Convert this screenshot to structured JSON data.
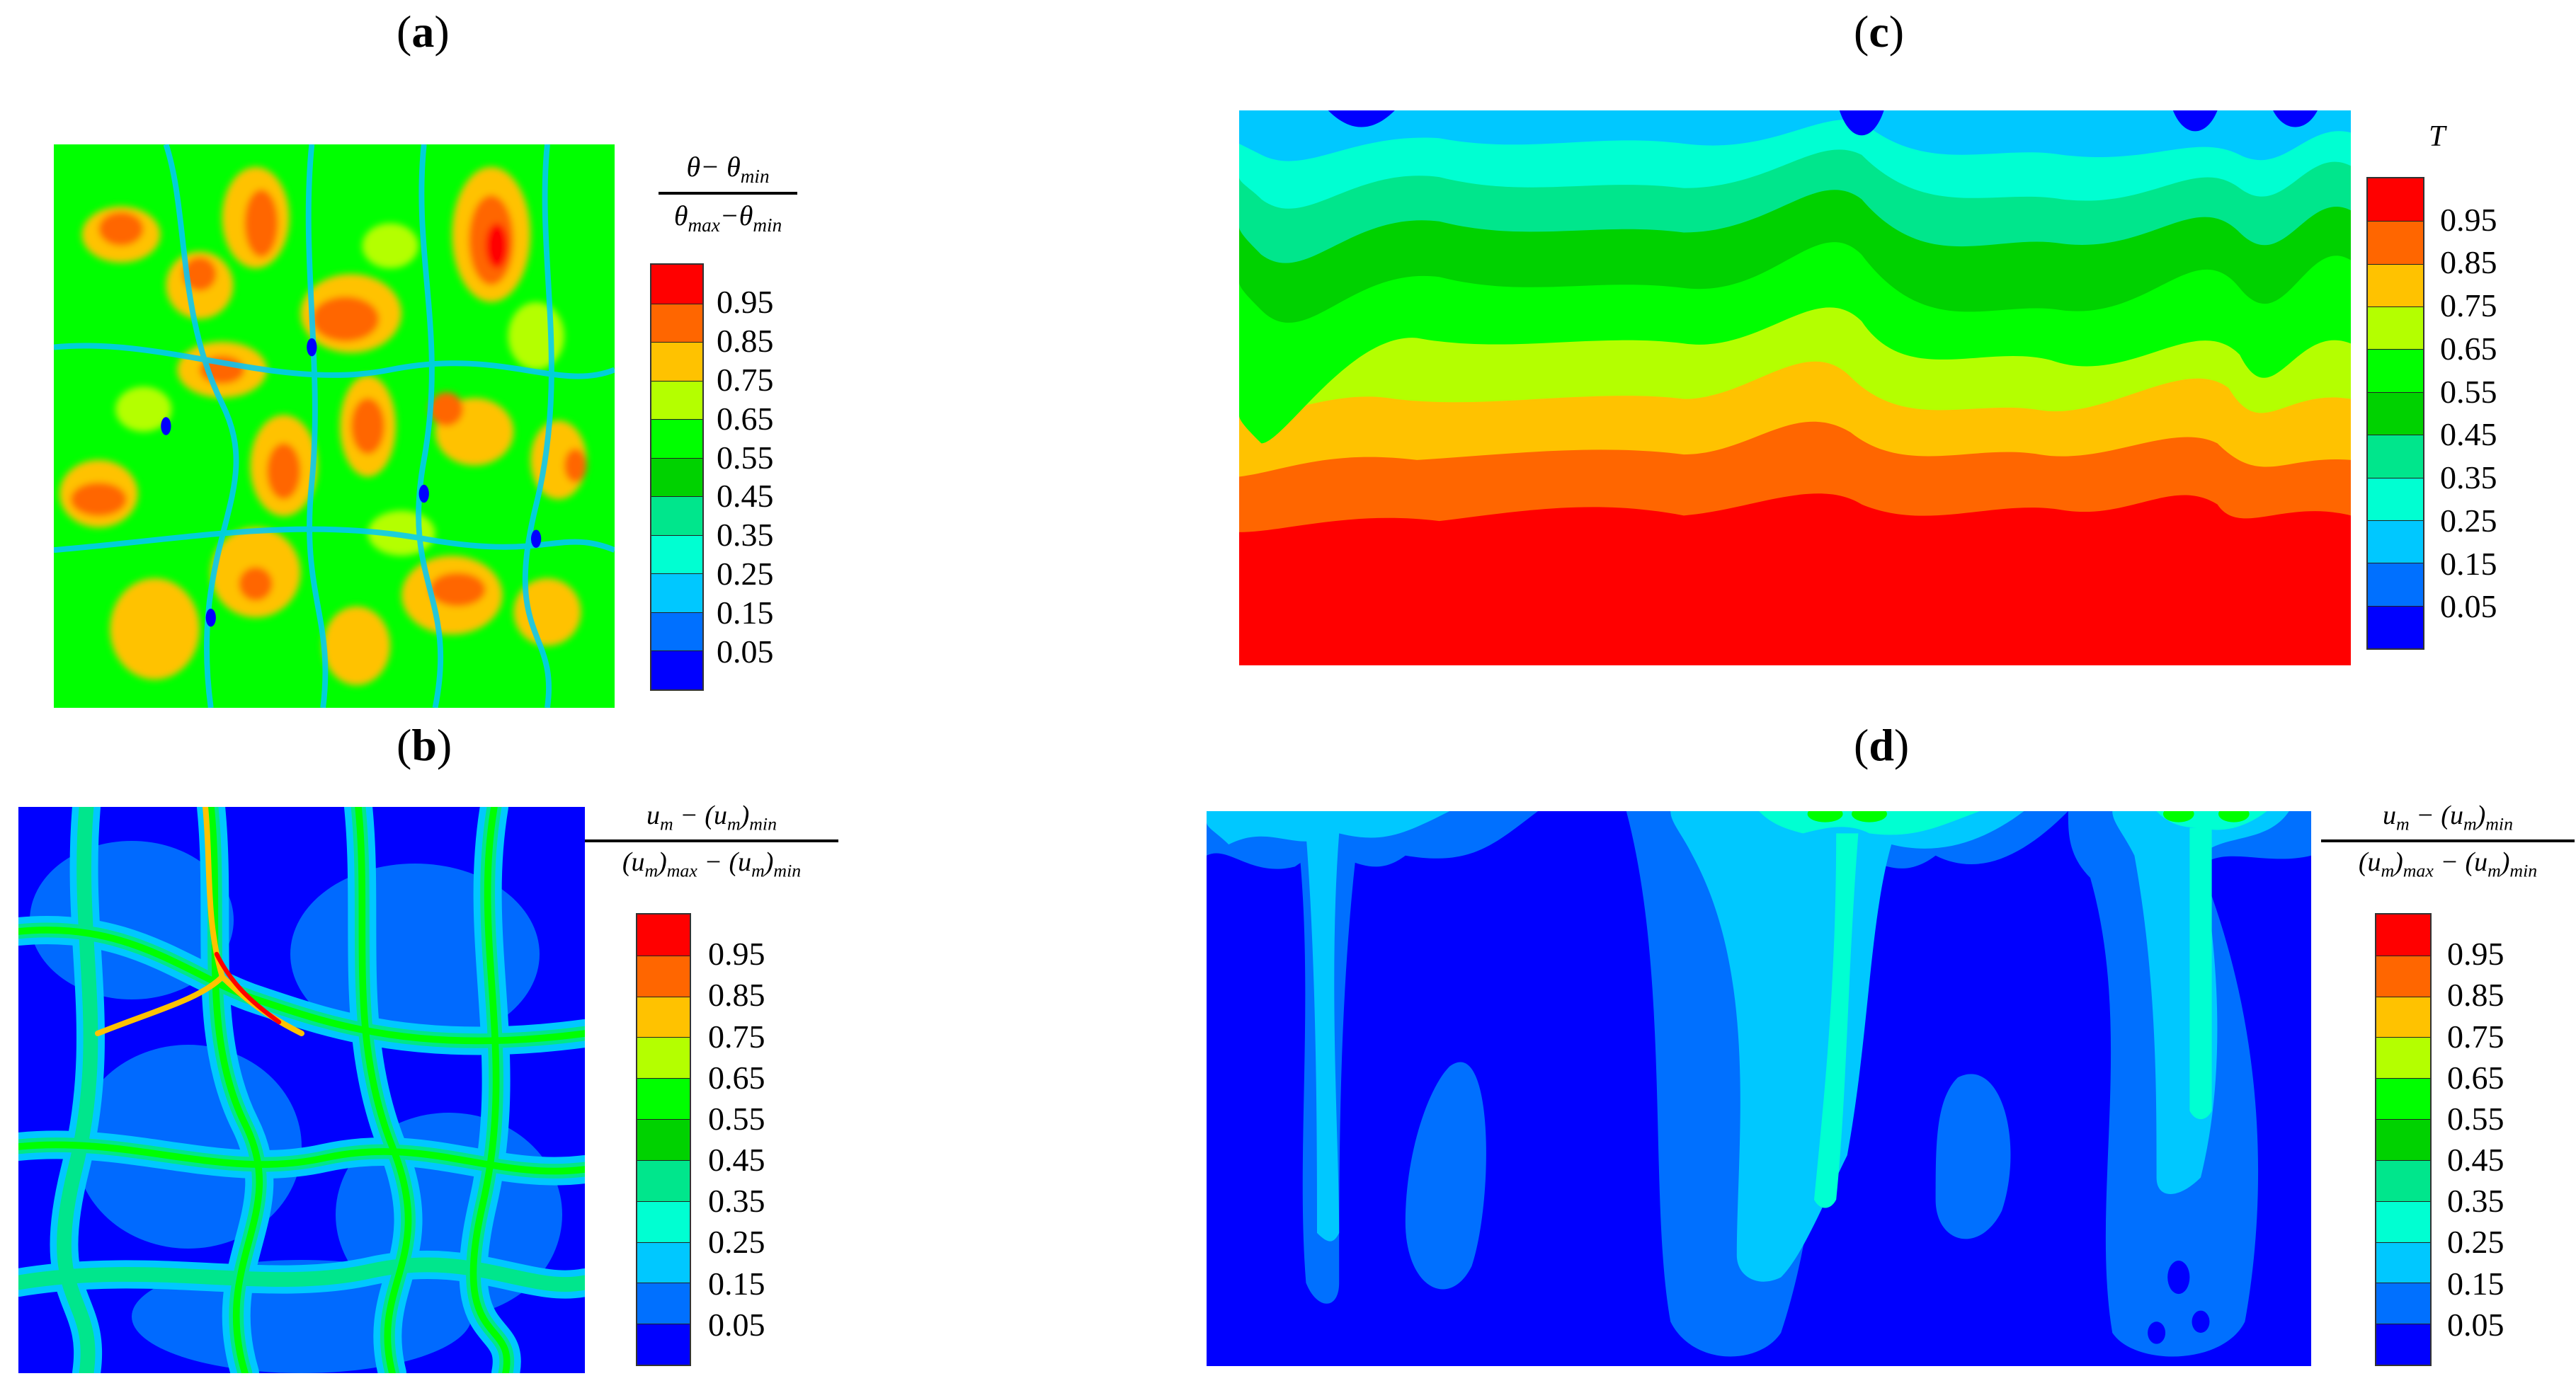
{
  "legend": {
    "levels": [
      "0.95",
      "0.85",
      "0.75",
      "0.65",
      "0.55",
      "0.45",
      "0.35",
      "0.25",
      "0.15",
      "0.05"
    ],
    "colors": [
      "#ff0000",
      "#ff6600",
      "#ffc200",
      "#b4ff00",
      "#00ff00",
      "#00d200",
      "#00e68c",
      "#00ffd2",
      "#00c8ff",
      "#0070ff",
      "#0000ff"
    ]
  },
  "panels": {
    "a": {
      "letter": "a",
      "title": {
        "num_a": "θ",
        "num_b": "− θ",
        "num_sub": "min",
        "den_a": "θ",
        "den_sub1": "max",
        "den_b": "−θ",
        "den_sub2": "min"
      }
    },
    "b": {
      "letter": "b",
      "title": {
        "num_a": "u",
        "num_sub1": "m",
        "num_b": " − (u",
        "num_sub2": "m",
        "num_c": ")",
        "num_sub3": "min",
        "den_a": "(u",
        "den_sub1": "m",
        "den_b": ")",
        "den_sub2": "max",
        "den_c": " − (u",
        "den_sub3": "m",
        "den_d": ")",
        "den_sub4": "min"
      }
    },
    "c": {
      "letter": "c",
      "title": "T"
    },
    "d": {
      "letter": "d",
      "title": {
        "num_a": "u",
        "num_sub1": "m",
        "num_b": " − (u",
        "num_sub2": "m",
        "num_c": ")",
        "num_sub3": "min",
        "den_a": "(u",
        "den_sub1": "m",
        "den_b": ")",
        "den_sub2": "max",
        "den_c": " − (u",
        "den_sub3": "m",
        "den_d": ")",
        "den_sub4": "min"
      }
    }
  },
  "chart_data": [
    {
      "type": "heatmap",
      "panel": "a",
      "legend_title": "θ− θmin / θmax−θmin",
      "levels": [
        0.05,
        0.15,
        0.25,
        0.35,
        0.45,
        0.55,
        0.65,
        0.75,
        0.85,
        0.95
      ],
      "description": "contour field, mostly 0.55–0.85 with scattered 0.95 hot spots and thin low-value seams"
    },
    {
      "type": "heatmap",
      "panel": "b",
      "legend_title": "um − (um)min / (um)max − (um)min",
      "levels": [
        0.05,
        0.15,
        0.25,
        0.35,
        0.45,
        0.55,
        0.65,
        0.75,
        0.85,
        0.95
      ],
      "description": "network of ridges 0.35–0.95 on low 0.05–0.15 background"
    },
    {
      "type": "heatmap",
      "panel": "c",
      "legend_title": "T",
      "levels": [
        0.05,
        0.15,
        0.25,
        0.35,
        0.45,
        0.55,
        0.65,
        0.75,
        0.85,
        0.95
      ],
      "description": "horizontal layers, 0.05 at top rising to 0.95 at bottom"
    },
    {
      "type": "heatmap",
      "panel": "d",
      "legend_title": "um − (um)min / (um)max − (um)min",
      "levels": [
        0.05,
        0.15,
        0.25,
        0.35,
        0.45,
        0.55,
        0.65,
        0.75,
        0.85,
        0.95
      ],
      "description": "mostly 0.05 with three plume regions descending from top, values up to ~0.65 near top"
    }
  ]
}
